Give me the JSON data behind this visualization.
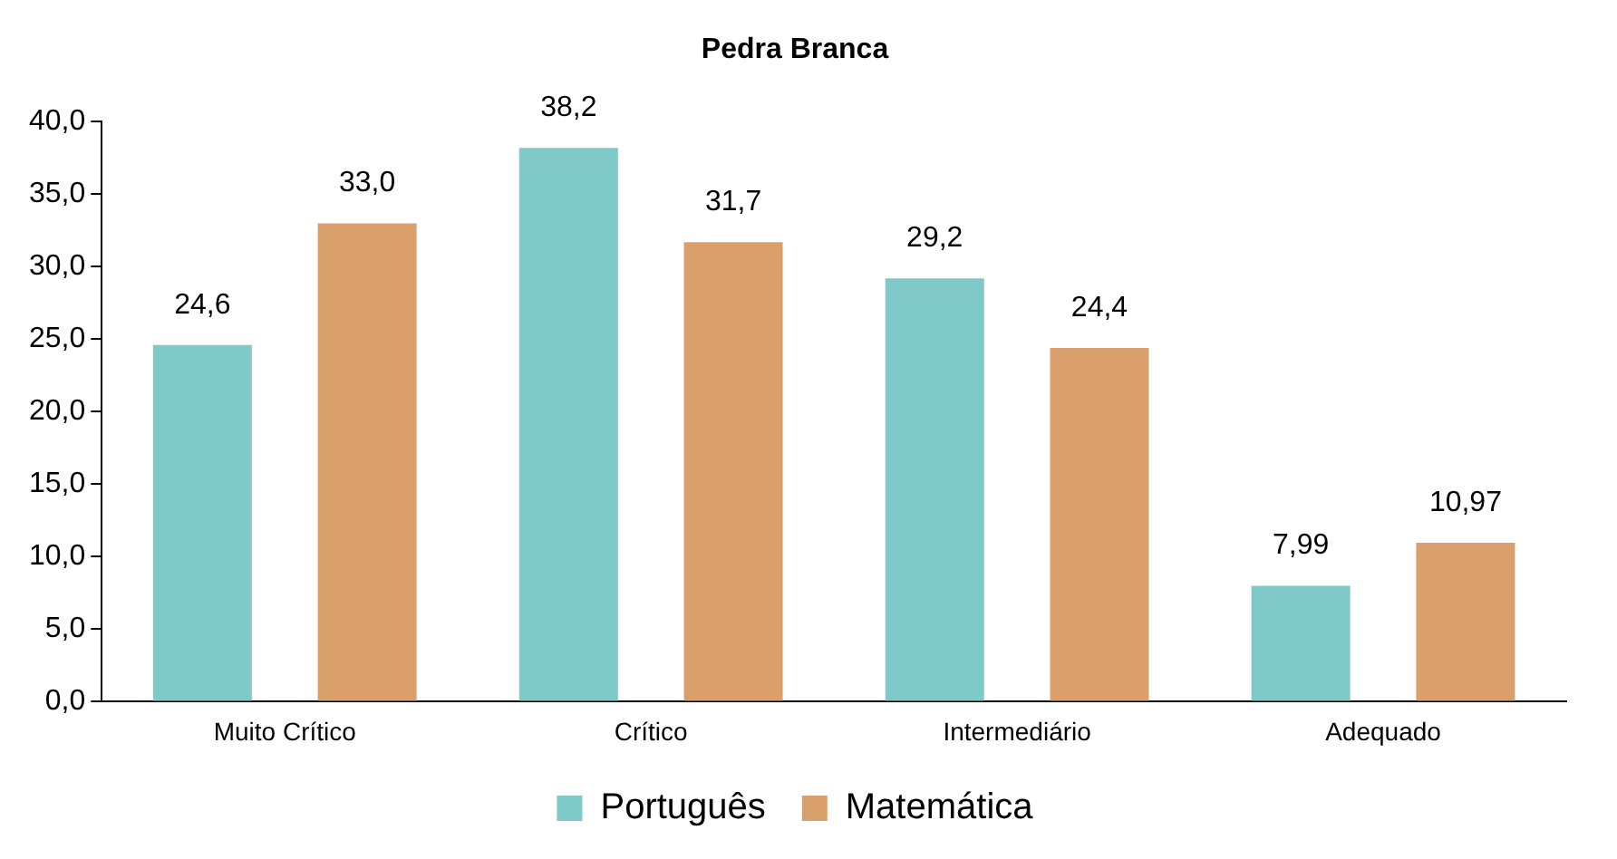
{
  "chart_data": {
    "type": "bar",
    "title": "Pedra Branca",
    "categories": [
      "Muito Crítico",
      "Crítico",
      "Intermediário",
      "Adequado"
    ],
    "series": [
      {
        "name": "Português",
        "color": "#7fc9c9",
        "values": [
          24.6,
          38.2,
          29.2,
          7.99
        ],
        "value_labels": [
          "24,6",
          "38,2",
          "29,2",
          "7,99"
        ]
      },
      {
        "name": "Matemática",
        "color": "#d9a06b",
        "values": [
          33.0,
          31.7,
          24.4,
          10.97
        ],
        "value_labels": [
          "33,0",
          "31,7",
          "24,4",
          "10,97"
        ]
      }
    ],
    "ylim": [
      0,
      40
    ],
    "yticks": [
      {
        "value": 0,
        "label": "0,0"
      },
      {
        "value": 5,
        "label": "5,0"
      },
      {
        "value": 10,
        "label": "10,0"
      },
      {
        "value": 15,
        "label": "15,0"
      },
      {
        "value": 20,
        "label": "20,0"
      },
      {
        "value": 25,
        "label": "25,0"
      },
      {
        "value": 30,
        "label": "30,0"
      },
      {
        "value": 35,
        "label": "35,0"
      },
      {
        "value": 40,
        "label": "40,0"
      }
    ],
    "grid": false,
    "legend": "bottom"
  }
}
